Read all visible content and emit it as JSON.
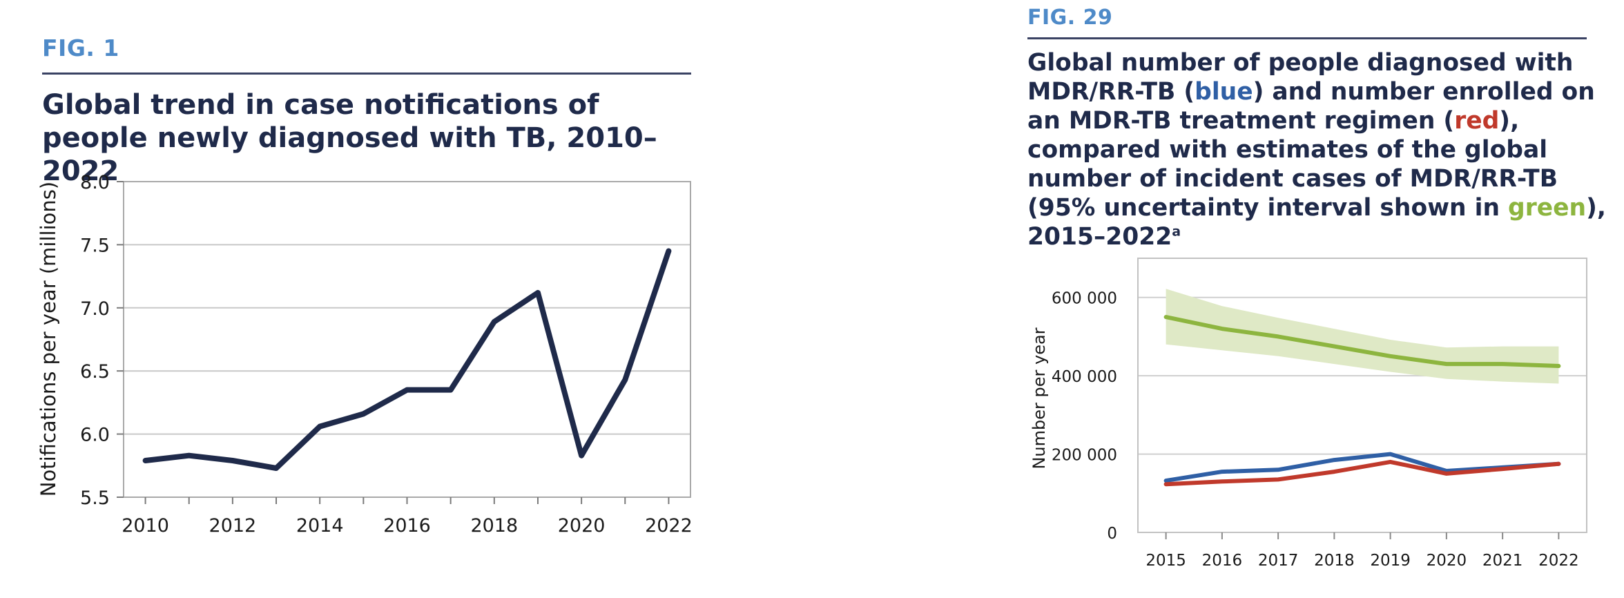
{
  "fig1": {
    "label": "FIG. 1",
    "title": "Global trend in case notifications of people newly diagnosed with TB, 2010–2022"
  },
  "fig29": {
    "label": "FIG. 29",
    "title_parts": {
      "p1": "Global number of people diagnosed with MDR/RR-TB (",
      "blue": "blue",
      "p2": ") and number enrolled on an MDR-TB treatment regimen (",
      "red": "red",
      "p3": "), compared with estimates of the global number of incident cases of MDR/RR-TB (95% uncertainty interval shown in ",
      "green": "green",
      "p4": "), 2015–2022",
      "sup": "a"
    }
  },
  "colors": {
    "line_dark": "#1f2a4a",
    "blue": "#2f5fa5",
    "red": "#c0392b",
    "green": "#8db53f",
    "green_band": "#dfe9c6",
    "grid": "#c8c8c8",
    "frame": "#a9a9a9"
  },
  "chart_data": [
    {
      "type": "line",
      "ylabel": "Notifications per year (millions)",
      "xlabel": "",
      "x": [
        2010,
        2011,
        2012,
        2013,
        2014,
        2015,
        2016,
        2017,
        2018,
        2019,
        2020,
        2021,
        2022
      ],
      "series": [
        {
          "values": [
            5.79,
            5.83,
            5.79,
            5.73,
            6.06,
            6.16,
            6.35,
            6.35,
            6.89,
            7.12,
            5.83,
            6.43,
            7.45
          ]
        }
      ],
      "ylim": [
        5.5,
        8.0
      ],
      "xlim": [
        2009.5,
        2022.5
      ],
      "yticks": [
        "5.5",
        "6.0",
        "6.5",
        "7.0",
        "7.5",
        "8.0"
      ],
      "xticks": [
        "2010",
        "2012",
        "2014",
        "2016",
        "2018",
        "2020",
        "2022"
      ],
      "grid": "horizontal"
    },
    {
      "type": "line",
      "ylabel": "Number per year",
      "xlabel": "",
      "x": [
        2015,
        2016,
        2017,
        2018,
        2019,
        2020,
        2021,
        2022
      ],
      "series": [
        {
          "values": [
            550000,
            520000,
            500000,
            475000,
            450000,
            430000,
            430000,
            425000
          ],
          "low": [
            480000,
            465000,
            450000,
            430000,
            410000,
            392000,
            385000,
            380000
          ],
          "high": [
            622000,
            578000,
            548000,
            520000,
            492000,
            472000,
            475000,
            475000
          ]
        },
        {
          "values": [
            132000,
            155000,
            160000,
            185000,
            200000,
            157000,
            166000,
            175000
          ]
        },
        {
          "values": [
            123000,
            130000,
            135000,
            155000,
            180000,
            150000,
            162000,
            175000
          ]
        }
      ],
      "ylim": [
        0,
        700000
      ],
      "xlim": [
        2014.5,
        2022.5
      ],
      "yticks": [
        "0",
        "200 000",
        "400 000",
        "600 000"
      ],
      "xticks": [
        "2015",
        "2016",
        "2017",
        "2018",
        "2019",
        "2020",
        "2021",
        "2022"
      ],
      "grid": "horizontal"
    }
  ]
}
